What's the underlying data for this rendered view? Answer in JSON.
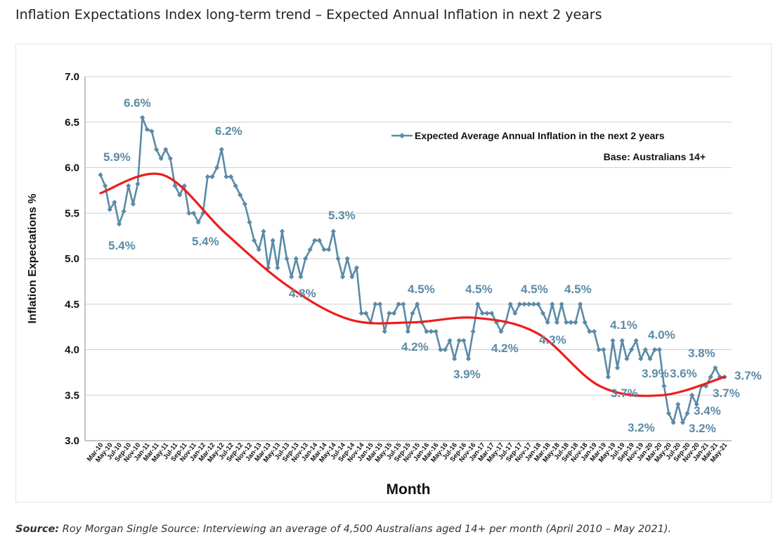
{
  "page": {
    "title": "Inflation Expectations Index long-term trend – Expected Annual Inflation in next 2 years",
    "source_label": "Source:",
    "source_text": " Roy Morgan Single Source: Interviewing an average of 4,500 Australians aged 14+ per month (April 2010 – May 2021)."
  },
  "chart_data": {
    "type": "line",
    "xlabel": "Month",
    "ylabel": "Inflation Expectations %",
    "ylim": [
      3.0,
      7.0
    ],
    "yticks": [
      "3.0",
      "3.5",
      "4.0",
      "4.5",
      "5.0",
      "5.5",
      "6.0",
      "6.5",
      "7.0"
    ],
    "grid": "horizontal",
    "legend": {
      "placement": "top-right",
      "base_note": "Base: Australians 14+"
    },
    "x_tick_labels": [
      "Mar-10",
      "May-10",
      "Jul-10",
      "Sep-10",
      "Nov-10",
      "Jan-11",
      "Mar-11",
      "May-11",
      "Jul-11",
      "Sep-11",
      "Nov-11",
      "Jan-12",
      "Mar-12",
      "May-12",
      "Jul-12",
      "Sep-12",
      "Nov-12",
      "Jan-13",
      "Mar-13",
      "May-13",
      "Jul-13",
      "Sep-13",
      "Nov-13",
      "Jan-14",
      "Mar-14",
      "May-14",
      "Jul-14",
      "Sep-14",
      "Nov-14",
      "Jan-15",
      "Mar-15",
      "May-15",
      "Jul-15",
      "Sep-15",
      "Nov-15",
      "Jan-16",
      "Mar-16",
      "May-16",
      "Jul-16",
      "Sep-16",
      "Nov-16",
      "Jan-17",
      "Mar-17",
      "May-17",
      "Jul-17",
      "Sep-17",
      "Nov-17",
      "Jan-18",
      "Mar-18",
      "May-18",
      "Jul-18",
      "Sep-18",
      "Nov-18",
      "Jan-19",
      "Mar-19",
      "May-19",
      "Jul-19",
      "Sep-19",
      "Nov-19",
      "Jan-20",
      "Mar-20",
      "May-20",
      "Jul-20",
      "Sep-20",
      "Nov-20",
      "Jan-21",
      "Mar-21",
      "May-21"
    ],
    "series": [
      {
        "name": "Expected Average Annual Inflation in the next 2 years",
        "color": "#5b8aa6",
        "marker": "diamond",
        "values": [
          5.92,
          5.8,
          5.54,
          5.62,
          5.38,
          5.52,
          5.8,
          5.6,
          5.82,
          6.55,
          6.42,
          6.4,
          6.2,
          6.1,
          6.2,
          6.1,
          5.8,
          5.7,
          5.8,
          5.5,
          5.5,
          5.4,
          5.5,
          5.9,
          5.9,
          6.0,
          6.2,
          5.9,
          5.9,
          5.8,
          5.7,
          5.6,
          5.4,
          5.2,
          5.1,
          5.3,
          4.9,
          5.2,
          4.9,
          5.3,
          5.0,
          4.8,
          5.0,
          4.8,
          5.0,
          5.1,
          5.2,
          5.2,
          5.1,
          5.1,
          5.3,
          5.0,
          4.8,
          5.0,
          4.8,
          4.9,
          4.4,
          4.4,
          4.3,
          4.5,
          4.5,
          4.2,
          4.4,
          4.4,
          4.5,
          4.5,
          4.2,
          4.4,
          4.5,
          4.3,
          4.2,
          4.2,
          4.2,
          4.0,
          4.0,
          4.1,
          3.9,
          4.1,
          4.1,
          3.9,
          4.2,
          4.5,
          4.4,
          4.4,
          4.4,
          4.3,
          4.2,
          4.3,
          4.5,
          4.4,
          4.5,
          4.5,
          4.5,
          4.5,
          4.5,
          4.4,
          4.3,
          4.5,
          4.3,
          4.5,
          4.3,
          4.3,
          4.3,
          4.5,
          4.3,
          4.2,
          4.2,
          4.0,
          4.0,
          3.7,
          4.1,
          3.8,
          4.1,
          3.9,
          4.0,
          4.1,
          3.9,
          4.0,
          3.9,
          4.0,
          4.0,
          3.6,
          3.3,
          3.2,
          3.4,
          3.2,
          3.3,
          3.5,
          3.4,
          3.6,
          3.6,
          3.7,
          3.8,
          3.7,
          3.7
        ]
      },
      {
        "name": "trend",
        "color": "#ee1c1c",
        "values": [
          5.72,
          5.92,
          5.28,
          4.7,
          4.33,
          4.3,
          4.35,
          4.18,
          3.6,
          3.5,
          3.7
        ]
      }
    ],
    "annotations": [
      {
        "text": "5.9%"
      },
      {
        "text": "5.4%"
      },
      {
        "text": "6.6%"
      },
      {
        "text": "5.4%"
      },
      {
        "text": "6.2%"
      },
      {
        "text": "5.3%"
      },
      {
        "text": "4.8%"
      },
      {
        "text": "4.5%"
      },
      {
        "text": "4.2%"
      },
      {
        "text": "3.9%"
      },
      {
        "text": "4.5%"
      },
      {
        "text": "4.2%"
      },
      {
        "text": "4.5%"
      },
      {
        "text": "4.3%"
      },
      {
        "text": "4.5%"
      },
      {
        "text": "4.1%"
      },
      {
        "text": "3.7%"
      },
      {
        "text": "3.9%"
      },
      {
        "text": "4.0%"
      },
      {
        "text": "3.2%"
      },
      {
        "text": "3.6%"
      },
      {
        "text": "3.8%"
      },
      {
        "text": "3.2%"
      },
      {
        "text": "3.4%"
      },
      {
        "text": "3.7%"
      },
      {
        "text": "3.7%"
      }
    ]
  }
}
